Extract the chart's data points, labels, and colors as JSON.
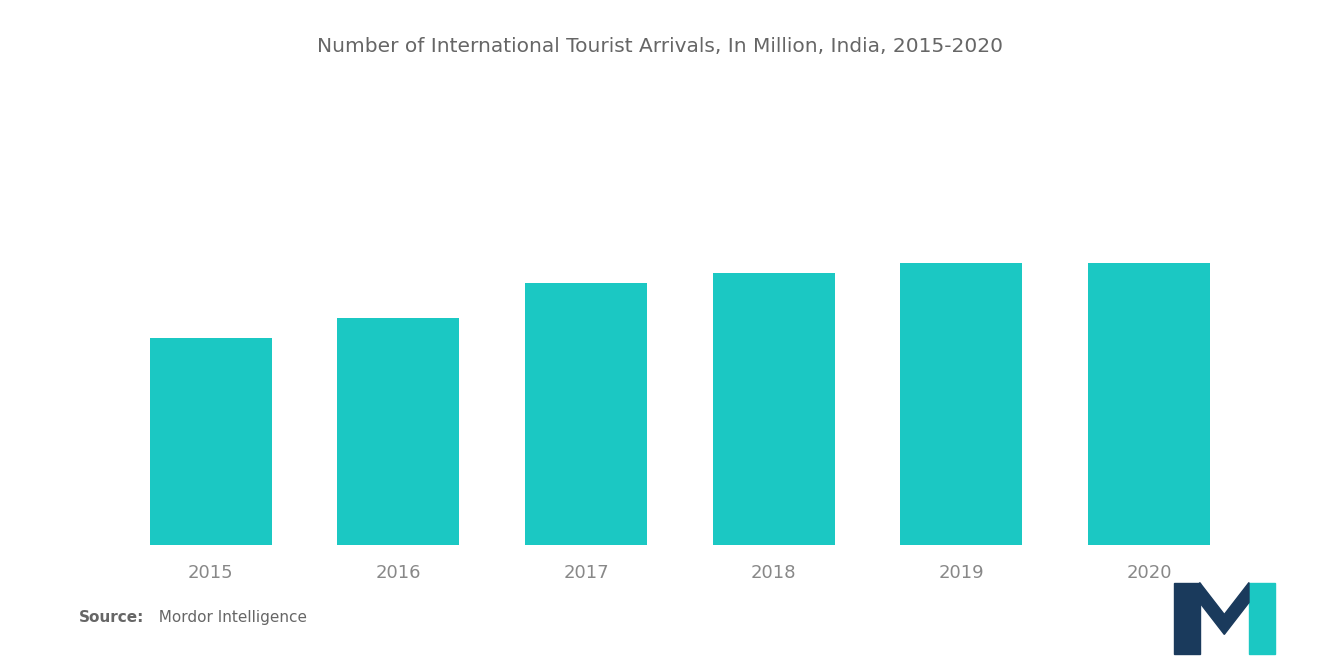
{
  "categories": [
    "2015",
    "2016",
    "2017",
    "2018",
    "2019",
    "2020"
  ],
  "values": [
    8.03,
    8.8,
    10.18,
    10.56,
    10.93,
    10.93
  ],
  "bar_color": "#1BC8C3",
  "title": "Number of International Tourist Arrivals, In Million, India, 2015-2020",
  "title_fontsize": 14.5,
  "title_color": "#666666",
  "background_color": "#FFFFFF",
  "xlabel_fontsize": 13,
  "xlabel_color": "#888888",
  "source_label_bold": "Source:",
  "source_label_normal": "  Mordor Intelligence",
  "source_fontsize": 11,
  "ylim": [
    0,
    16.5
  ],
  "bar_width": 0.65,
  "logo_color1": "#1a3a5c",
  "logo_color2": "#1BC8C3"
}
